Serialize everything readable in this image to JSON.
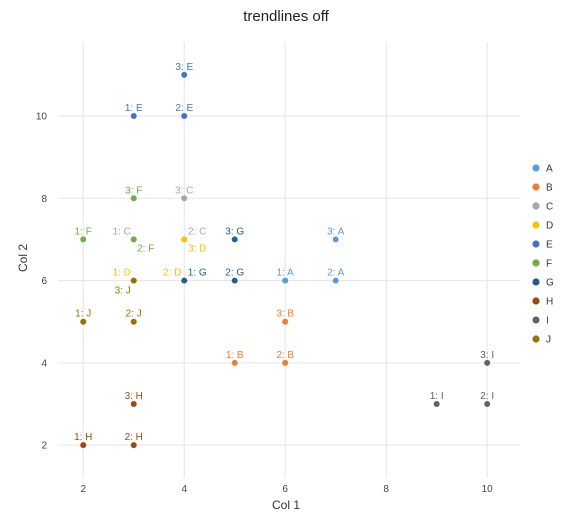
{
  "chart_data": {
    "type": "scatter",
    "title": "trendlines off",
    "xlabel": "Col 1",
    "ylabel": "Col 2",
    "xlim": [
      1.5,
      10.65
    ],
    "ylim": [
      1.2,
      11.8
    ],
    "xticks": [
      2,
      4,
      6,
      8,
      10
    ],
    "yticks": [
      2,
      4,
      6,
      8,
      10
    ],
    "grid": true,
    "legend_position": "right",
    "series": [
      {
        "name": "A",
        "color": "#5b9bd5",
        "points": [
          {
            "x": 6,
            "y": 6,
            "label": "1: A"
          },
          {
            "x": 7,
            "y": 6,
            "label": "2: A"
          },
          {
            "x": 7,
            "y": 7,
            "label": "3: A"
          }
        ]
      },
      {
        "name": "B",
        "color": "#ed7d31",
        "points": [
          {
            "x": 5,
            "y": 4,
            "label": "1: B"
          },
          {
            "x": 6,
            "y": 4,
            "label": "2: B"
          },
          {
            "x": 6,
            "y": 5,
            "label": "3: B"
          }
        ]
      },
      {
        "name": "C",
        "color": "#a5a5a5",
        "points": [
          {
            "x": 3,
            "y": 7,
            "label": "1: C"
          },
          {
            "x": 4,
            "y": 7,
            "label": "2: C"
          },
          {
            "x": 4,
            "y": 8,
            "label": "3: C"
          }
        ]
      },
      {
        "name": "D",
        "color": "#ffc000",
        "points": [
          {
            "x": 3,
            "y": 6,
            "label": "1: D"
          },
          {
            "x": 4,
            "y": 6,
            "label": "2: D"
          },
          {
            "x": 4,
            "y": 7,
            "label": "3: D"
          }
        ]
      },
      {
        "name": "E",
        "color": "#4472c4",
        "points": [
          {
            "x": 3,
            "y": 10,
            "label": "1: E"
          },
          {
            "x": 4,
            "y": 10,
            "label": "2: E"
          },
          {
            "x": 4,
            "y": 11,
            "label": "3: E"
          }
        ]
      },
      {
        "name": "F",
        "color": "#70ad47",
        "points": [
          {
            "x": 2,
            "y": 7,
            "label": "1: F"
          },
          {
            "x": 3,
            "y": 7,
            "label": "2: F"
          },
          {
            "x": 3,
            "y": 8,
            "label": "3: F"
          }
        ]
      },
      {
        "name": "G",
        "color": "#255e91",
        "points": [
          {
            "x": 4,
            "y": 6,
            "label": "1: G"
          },
          {
            "x": 5,
            "y": 6,
            "label": "2: G"
          },
          {
            "x": 5,
            "y": 7,
            "label": "3: G"
          }
        ]
      },
      {
        "name": "H",
        "color": "#9e480e",
        "points": [
          {
            "x": 2,
            "y": 2,
            "label": "1: H"
          },
          {
            "x": 3,
            "y": 2,
            "label": "2: H"
          },
          {
            "x": 3,
            "y": 3,
            "label": "3: H"
          }
        ]
      },
      {
        "name": "I",
        "color": "#636363",
        "points": [
          {
            "x": 9,
            "y": 3,
            "label": "1: I"
          },
          {
            "x": 10,
            "y": 3,
            "label": "2: I"
          },
          {
            "x": 10,
            "y": 4,
            "label": "3: I"
          }
        ]
      },
      {
        "name": "J",
        "color": "#997300",
        "points": [
          {
            "x": 2,
            "y": 5,
            "label": "1: J"
          },
          {
            "x": 3,
            "y": 5,
            "label": "2: J"
          },
          {
            "x": 3,
            "y": 6,
            "label": "3: J"
          }
        ]
      }
    ]
  }
}
